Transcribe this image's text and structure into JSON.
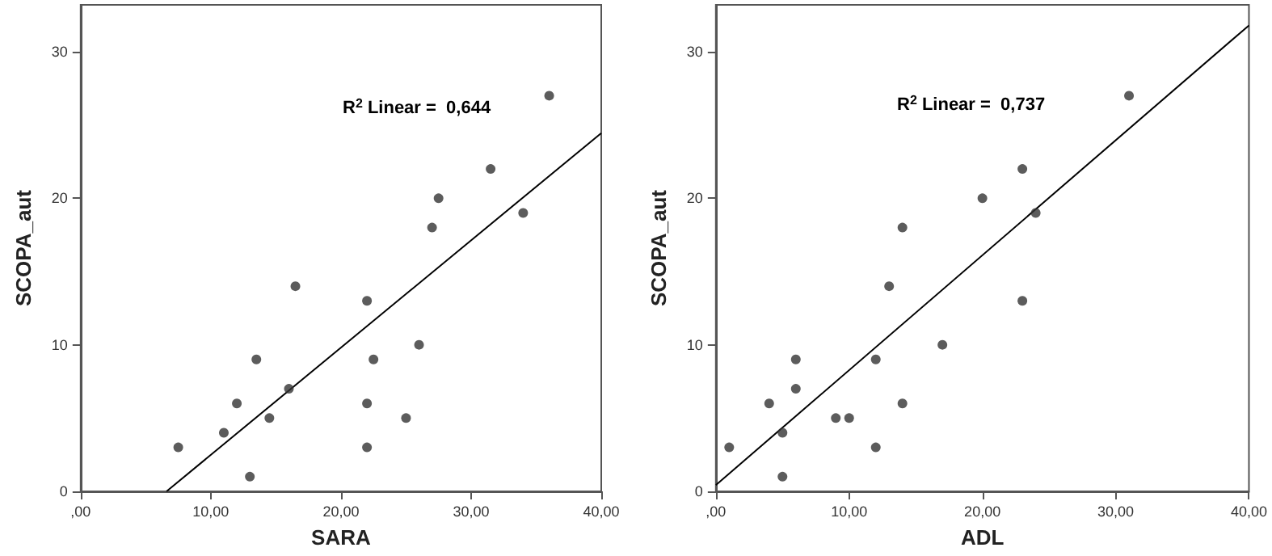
{
  "chart_data": [
    {
      "type": "scatter",
      "xlabel": "SARA",
      "ylabel": "SCOPA_aut",
      "annotations": [
        "R$^{2}$ Linear =  0,644"
      ],
      "xlim": [
        0,
        40
      ],
      "ylim": [
        0,
        33.2
      ],
      "xticks": [
        {
          "value": 0,
          "label": ",00"
        },
        {
          "value": 10,
          "label": "10,00"
        },
        {
          "value": 20,
          "label": "20,00"
        },
        {
          "value": 30,
          "label": "30,00"
        },
        {
          "value": 40,
          "label": "40,00"
        }
      ],
      "yticks": [
        0,
        10,
        20,
        30
      ],
      "grid": false,
      "marker": "circle",
      "series": [
        {
          "color": "#333333",
          "x": [
            7.5,
            11,
            12,
            13,
            13.5,
            14.5,
            16,
            16.5,
            22,
            22,
            22,
            22.5,
            25,
            26,
            27,
            27.5,
            31.5,
            34,
            36
          ],
          "values": [
            3,
            4,
            6,
            1,
            9,
            5,
            7,
            14,
            13,
            6,
            3,
            9,
            5,
            10,
            18,
            20,
            22,
            19,
            27
          ]
        },
        {
          "type": "line",
          "color": "#000000",
          "marker": "none",
          "x": [
            6.6,
            40
          ],
          "values": [
            0,
            24.45
          ]
        }
      ]
    },
    {
      "type": "scatter",
      "xlabel": "ADL",
      "ylabel": "SCOPA_aut",
      "annotations": [
        "R$^{2}$ Linear =  0,737"
      ],
      "xlim": [
        0,
        40
      ],
      "ylim": [
        0,
        33.2
      ],
      "xticks": [
        {
          "value": 0,
          "label": ",00"
        },
        {
          "value": 10,
          "label": "10,00"
        },
        {
          "value": 20,
          "label": "20,00"
        },
        {
          "value": 30,
          "label": "30,00"
        },
        {
          "value": 40,
          "label": "40,00"
        }
      ],
      "yticks": [
        0,
        10,
        20,
        30
      ],
      "grid": false,
      "marker": "circle",
      "series": [
        {
          "color": "#333333",
          "x": [
            1,
            4,
            5,
            5,
            6,
            6,
            9,
            10,
            12,
            12,
            13,
            14,
            14,
            17,
            20,
            23,
            23,
            24,
            31
          ],
          "values": [
            3,
            6,
            4,
            1,
            9,
            7,
            5,
            5,
            9,
            3,
            14,
            18,
            6,
            10,
            20,
            22,
            13,
            19,
            27
          ]
        },
        {
          "type": "line",
          "color": "#000000",
          "marker": "none",
          "x": [
            0,
            40
          ],
          "values": [
            0.43,
            31.8
          ]
        }
      ]
    }
  ]
}
